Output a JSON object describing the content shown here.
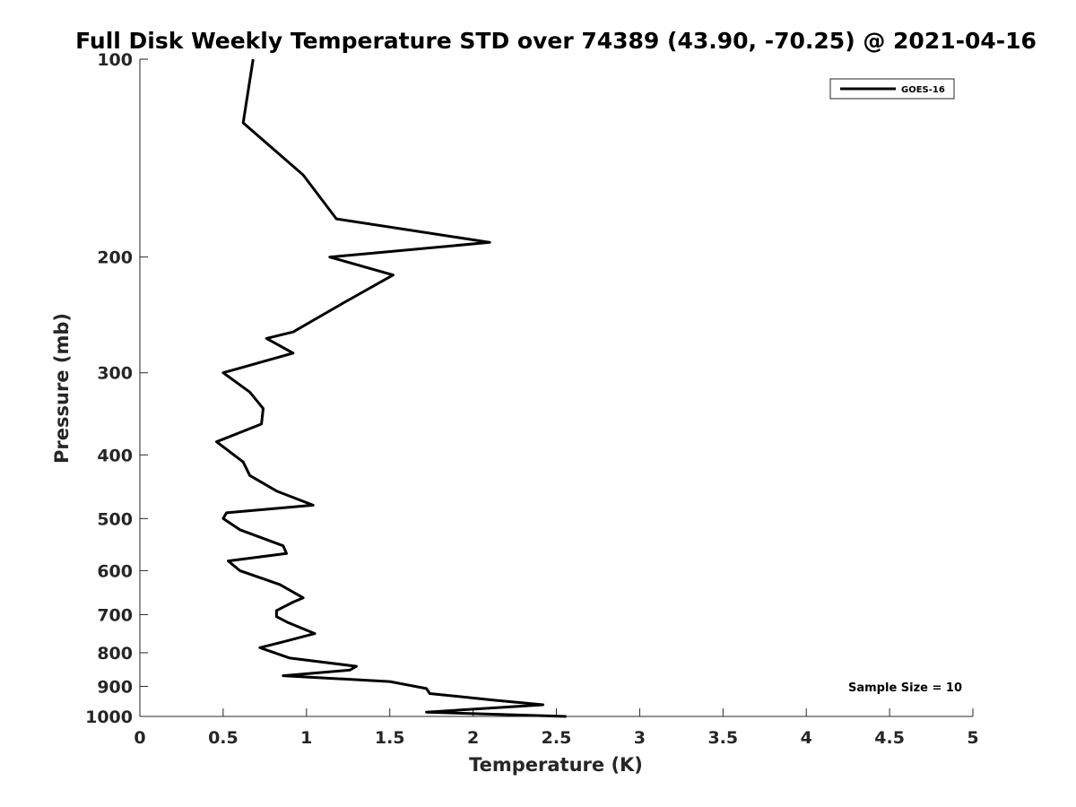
{
  "chart_data": {
    "type": "line",
    "title": "Full Disk Weekly Temperature STD over 74389 (43.90, -70.25) @ 2021-04-16",
    "xlabel": "Temperature (K)",
    "ylabel": "Pressure (mb)",
    "xlim": [
      0,
      5
    ],
    "ylim": [
      100,
      1000
    ],
    "y_scale": "log",
    "y_reversed": true,
    "grid": false,
    "x_ticks": [
      "0",
      "0.5",
      "1",
      "1.5",
      "2",
      "2.5",
      "3",
      "3.5",
      "4",
      "4.5",
      "5"
    ],
    "x_tick_values": [
      0,
      0.5,
      1,
      1.5,
      2,
      2.5,
      3,
      3.5,
      4,
      4.5,
      5
    ],
    "y_ticks": [
      "100",
      "200",
      "300",
      "400",
      "500",
      "600",
      "700",
      "800",
      "900",
      "1000"
    ],
    "y_tick_values": [
      100,
      200,
      300,
      400,
      500,
      600,
      700,
      800,
      900,
      1000
    ],
    "legend": {
      "position": "top-right",
      "entries": [
        "GOES-16"
      ]
    },
    "annotation": "Sample Size = 10",
    "series": [
      {
        "name": "GOES-16",
        "color": "#000000",
        "points": [
          [
            0.68,
            100
          ],
          [
            0.62,
            125
          ],
          [
            0.98,
            150
          ],
          [
            1.18,
            175
          ],
          [
            2.1,
            190
          ],
          [
            1.14,
            200
          ],
          [
            1.52,
            213
          ],
          [
            1.22,
            235
          ],
          [
            0.92,
            260
          ],
          [
            0.76,
            266
          ],
          [
            0.92,
            280
          ],
          [
            0.5,
            300
          ],
          [
            0.66,
            321
          ],
          [
            0.74,
            340
          ],
          [
            0.73,
            359
          ],
          [
            0.46,
            382
          ],
          [
            0.62,
            410
          ],
          [
            0.66,
            430
          ],
          [
            0.82,
            454
          ],
          [
            1.04,
            477
          ],
          [
            0.52,
            490
          ],
          [
            0.5,
            500
          ],
          [
            0.6,
            520
          ],
          [
            0.86,
            550
          ],
          [
            0.88,
            565
          ],
          [
            0.53,
            580
          ],
          [
            0.6,
            600
          ],
          [
            0.84,
            630
          ],
          [
            0.98,
            660
          ],
          [
            0.92,
            670
          ],
          [
            0.82,
            690
          ],
          [
            0.82,
            705
          ],
          [
            0.89,
            720
          ],
          [
            1.05,
            748
          ],
          [
            0.86,
            770
          ],
          [
            0.72,
            786
          ],
          [
            0.9,
            815
          ],
          [
            1.3,
            839
          ],
          [
            1.26,
            850
          ],
          [
            0.86,
            867
          ],
          [
            1.5,
            885
          ],
          [
            1.72,
            907
          ],
          [
            1.74,
            923
          ],
          [
            2.12,
            944
          ],
          [
            2.42,
            960
          ],
          [
            1.72,
            985
          ],
          [
            2.56,
            1000
          ]
        ]
      }
    ]
  }
}
